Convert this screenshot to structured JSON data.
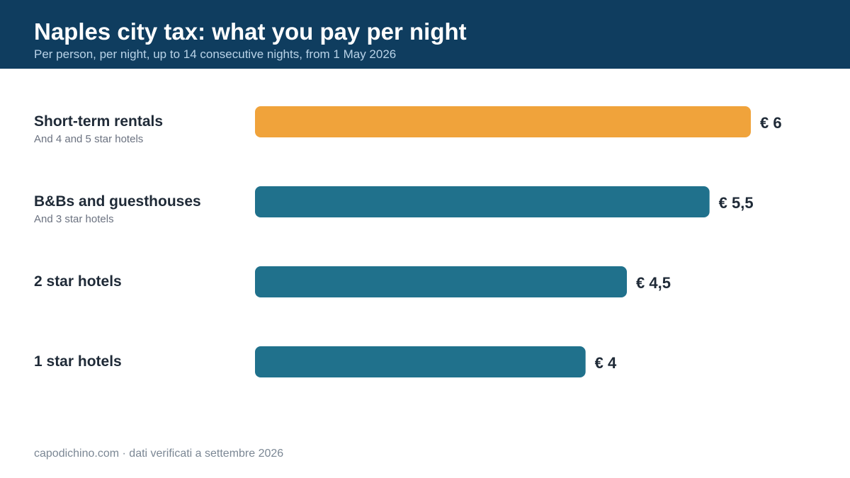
{
  "header": {
    "title": "Naples city tax: what you pay per night",
    "subtitle": "Per person, per night, up to 14 consecutive nights, from 1 May 2026"
  },
  "chart_data": {
    "type": "bar",
    "orientation": "horizontal",
    "categories": [
      "Short-term rentals",
      "B&Bs and guesthouses",
      "2 star hotels",
      "1 star hotels"
    ],
    "category_notes": [
      "And 4 and 5 star hotels",
      "And 3 star hotels",
      "",
      ""
    ],
    "values": [
      6,
      5.5,
      4.5,
      4
    ],
    "value_labels": [
      "€ 6",
      "€ 5,5",
      "€ 4,5",
      "€ 4"
    ],
    "highlight_index": 0,
    "colors": {
      "highlight": "#f0a33b",
      "default": "#20718c",
      "label_text": "#1f2a37",
      "note_text": "#6b7280"
    },
    "xlim": [
      0,
      6
    ],
    "grid": false,
    "legend": "none",
    "title": "Naples city tax: what you pay per night",
    "xlabel": "",
    "ylabel": ""
  },
  "footer": {
    "source": "capodichino.com · dati verificati a settembre 2026"
  }
}
